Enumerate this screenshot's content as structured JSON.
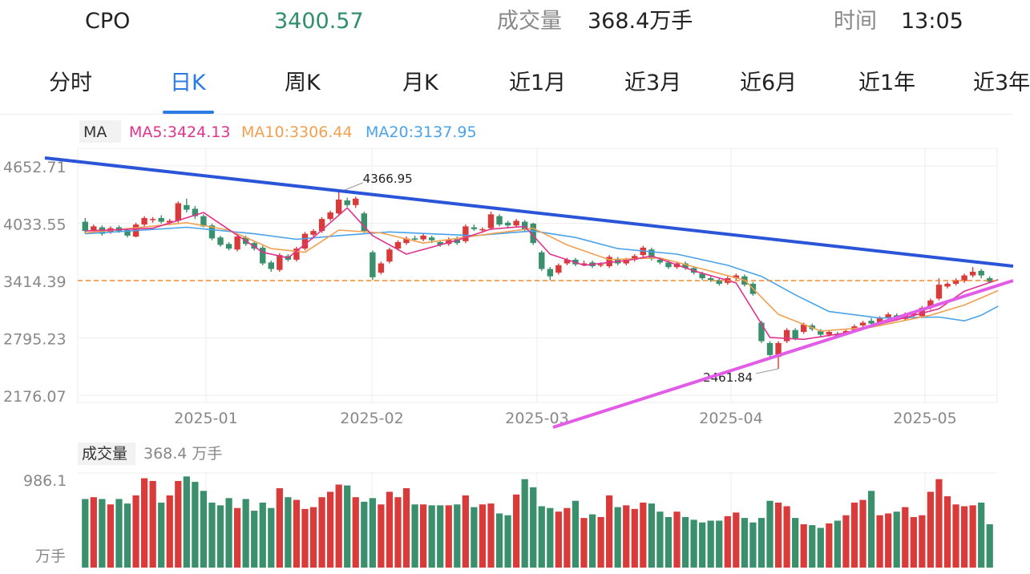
{
  "header": {
    "symbol": "CPO",
    "price": "3400.57",
    "volume_label": "成交量",
    "volume_value": "368.4万手",
    "time_label": "时间",
    "time_value": "13:05"
  },
  "tabs": [
    "分时",
    "日K",
    "周K",
    "月K",
    "近1月",
    "近3月",
    "近6月",
    "近1年",
    "近3年"
  ],
  "active_tab": "日K",
  "legend": {
    "ma_tag": "MA",
    "ma5": "MA5:3424.13",
    "ma10": "MA10:3306.44",
    "ma20": "MA20:3137.95"
  },
  "volume_panel": {
    "label": "成交量",
    "value": "368.4 万手",
    "max_tick": "986.1",
    "unit": "万手"
  },
  "colors": {
    "up": "#d93a3a",
    "down": "#3a8f6d",
    "ma5": "#e0338e",
    "ma10": "#f0a050",
    "ma20": "#4aa3e8",
    "resistance_line": "#2a55d8",
    "support_line": "#e25ce8",
    "price_line": "#f08a2a",
    "price_color": "#2f8f6a",
    "tab_active": "#2a7be4"
  },
  "chart_data": {
    "type": "candlestick",
    "y_ticks": [
      "4652.71",
      "4033.55",
      "3414.39",
      "2795.23",
      "2176.07"
    ],
    "x_ticks": [
      "2025-01",
      "2025-02",
      "2025-03",
      "2025-04",
      "2025-05"
    ],
    "ylim": [
      2176.07,
      4652.71
    ],
    "max_label": "4366.95",
    "min_label": "2461.84",
    "current_price": 3414.39,
    "grid": true,
    "candles": [
      [
        4050,
        3950,
        4090,
        3920
      ],
      [
        3950,
        4000,
        4020,
        3930
      ],
      [
        3990,
        3920,
        4010,
        3900
      ],
      [
        3940,
        3980,
        4000,
        3920
      ],
      [
        3990,
        3950,
        4010,
        3930
      ],
      [
        3960,
        3900,
        3980,
        3880
      ],
      [
        3890,
        4020,
        4040,
        3880
      ],
      [
        4020,
        4090,
        4110,
        4000
      ],
      [
        4070,
        4080,
        4100,
        4040
      ],
      [
        4090,
        4050,
        4120,
        4030
      ],
      [
        4040,
        4060,
        4080,
        4020
      ],
      [
        4060,
        4250,
        4270,
        4040
      ],
      [
        4230,
        4180,
        4300,
        4150
      ],
      [
        4190,
        4110,
        4220,
        4080
      ],
      [
        4110,
        4000,
        4130,
        3990
      ],
      [
        4010,
        3870,
        4030,
        3850
      ],
      [
        3880,
        3800,
        3900,
        3780
      ],
      [
        3810,
        3760,
        3830,
        3740
      ],
      [
        3750,
        3890,
        3910,
        3730
      ],
      [
        3880,
        3810,
        3900,
        3790
      ],
      [
        3820,
        3760,
        3840,
        3740
      ],
      [
        3770,
        3600,
        3790,
        3580
      ],
      [
        3610,
        3540,
        3630,
        3510
      ],
      [
        3530,
        3690,
        3710,
        3510
      ],
      [
        3680,
        3640,
        3700,
        3620
      ],
      [
        3640,
        3760,
        3780,
        3620
      ],
      [
        3760,
        3920,
        3940,
        3740
      ],
      [
        3910,
        3950,
        3970,
        3890
      ],
      [
        3950,
        4080,
        4100,
        3930
      ],
      [
        4080,
        4150,
        4170,
        4060
      ],
      [
        4140,
        4290,
        4366.95,
        4120
      ],
      [
        4280,
        4230,
        4310,
        4210
      ],
      [
        4230,
        4300,
        4320,
        4200
      ],
      [
        4140,
        3950,
        4160,
        3930
      ],
      [
        3720,
        3450,
        3740,
        3420
      ],
      [
        3500,
        3600,
        3620,
        3480
      ],
      [
        3620,
        3750,
        3770,
        3600
      ],
      [
        3760,
        3830,
        3850,
        3740
      ],
      [
        3820,
        3870,
        3890,
        3800
      ],
      [
        3870,
        3860,
        3900,
        3840
      ],
      [
        3860,
        3900,
        3920,
        3840
      ],
      [
        3880,
        3850,
        3900,
        3820
      ],
      [
        3830,
        3800,
        3850,
        3780
      ],
      [
        3810,
        3860,
        3880,
        3790
      ],
      [
        3860,
        3820,
        3890,
        3800
      ],
      [
        3840,
        4000,
        4020,
        3820
      ],
      [
        3990,
        3970,
        4020,
        3950
      ],
      [
        3960,
        3970,
        3990,
        3930
      ],
      [
        3980,
        4130,
        4160,
        3960
      ],
      [
        4110,
        4020,
        4130,
        4000
      ],
      [
        4040,
        4010,
        4060,
        3990
      ],
      [
        4010,
        4060,
        4080,
        3990
      ],
      [
        4050,
        3960,
        4070,
        3940
      ],
      [
        4030,
        3820,
        4040,
        3800
      ],
      [
        3720,
        3540,
        3740,
        3520
      ],
      [
        3540,
        3460,
        3560,
        3420
      ],
      [
        3500,
        3580,
        3600,
        3480
      ],
      [
        3600,
        3640,
        3660,
        3580
      ],
      [
        3640,
        3590,
        3660,
        3570
      ],
      [
        3600,
        3600,
        3630,
        3570
      ],
      [
        3610,
        3570,
        3630,
        3550
      ],
      [
        3580,
        3590,
        3610,
        3560
      ],
      [
        3570,
        3670,
        3690,
        3550
      ],
      [
        3650,
        3600,
        3670,
        3580
      ],
      [
        3600,
        3640,
        3660,
        3580
      ],
      [
        3640,
        3680,
        3700,
        3620
      ],
      [
        3690,
        3770,
        3790,
        3670
      ],
      [
        3750,
        3650,
        3770,
        3630
      ],
      [
        3640,
        3610,
        3660,
        3590
      ],
      [
        3610,
        3560,
        3630,
        3540
      ],
      [
        3560,
        3600,
        3620,
        3540
      ],
      [
        3600,
        3550,
        3620,
        3530
      ],
      [
        3550,
        3500,
        3570,
        3480
      ],
      [
        3490,
        3440,
        3510,
        3420
      ],
      [
        3440,
        3420,
        3460,
        3400
      ],
      [
        3420,
        3380,
        3440,
        3360
      ],
      [
        3390,
        3440,
        3460,
        3370
      ],
      [
        3440,
        3470,
        3490,
        3420
      ],
      [
        3460,
        3370,
        3480,
        3350
      ],
      [
        3380,
        3270,
        3400,
        3250
      ],
      [
        2960,
        2760,
        2980,
        2740
      ],
      [
        2740,
        2610,
        2760,
        2590
      ],
      [
        2590,
        2740,
        2760,
        2461.84
      ],
      [
        2760,
        2880,
        2900,
        2740
      ],
      [
        2880,
        2790,
        2900,
        2770
      ],
      [
        2860,
        2940,
        2960,
        2840
      ],
      [
        2930,
        2890,
        2950,
        2870
      ],
      [
        2870,
        2830,
        2890,
        2810
      ],
      [
        2830,
        2860,
        2880,
        2810
      ],
      [
        2840,
        2810,
        2860,
        2790
      ],
      [
        2850,
        2870,
        2890,
        2830
      ],
      [
        2880,
        2920,
        2940,
        2860
      ],
      [
        2930,
        2960,
        2980,
        2910
      ],
      [
        2980,
        2950,
        3010,
        2930
      ],
      [
        2950,
        3010,
        3030,
        2930
      ],
      [
        3010,
        3050,
        3070,
        2990
      ],
      [
        3040,
        3000,
        3060,
        2980
      ],
      [
        3000,
        3050,
        3070,
        2980
      ],
      [
        3040,
        3060,
        3080,
        3020
      ],
      [
        3030,
        3120,
        3140,
        3010
      ],
      [
        3120,
        3200,
        3220,
        3100
      ],
      [
        3220,
        3370,
        3440,
        3200
      ],
      [
        3350,
        3380,
        3400,
        3330
      ],
      [
        3380,
        3420,
        3440,
        3360
      ],
      [
        3410,
        3470,
        3490,
        3390
      ],
      [
        3470,
        3510,
        3560,
        3450
      ],
      [
        3520,
        3470,
        3540,
        3440
      ],
      [
        3440,
        3400,
        3460,
        3390
      ]
    ],
    "volumes": [
      760,
      780,
      760,
      700,
      760,
      710,
      800,
      990,
      960,
      720,
      800,
      960,
      1010,
      950,
      850,
      720,
      690,
      770,
      660,
      760,
      630,
      720,
      660,
      880,
      780,
      750,
      650,
      670,
      780,
      840,
      920,
      910,
      780,
      730,
      770,
      700,
      840,
      780,
      880,
      700,
      700,
      690,
      690,
      690,
      700,
      800,
      670,
      700,
      710,
      600,
      580,
      810,
      980,
      890,
      680,
      660,
      620,
      660,
      740,
      550,
      590,
      560,
      800,
      670,
      690,
      650,
      720,
      710,
      620,
      560,
      620,
      560,
      530,
      500,
      520,
      520,
      570,
      610,
      550,
      500,
      550,
      740,
      720,
      680,
      550,
      480,
      470,
      440,
      490,
      520,
      580,
      720,
      750,
      850,
      580,
      600,
      620,
      670,
      560,
      580,
      840,
      980,
      790,
      700,
      680,
      690,
      720,
      480
    ],
    "ma5": [
      [
        0,
        3950
      ],
      [
        8,
        3980
      ],
      [
        14,
        4150
      ],
      [
        21,
        3720
      ],
      [
        24,
        3660
      ],
      [
        27,
        3880
      ],
      [
        31,
        4200
      ],
      [
        34,
        3900
      ],
      [
        38,
        3700
      ],
      [
        44,
        3850
      ],
      [
        48,
        3970
      ],
      [
        52,
        4000
      ],
      [
        55,
        3700
      ],
      [
        59,
        3580
      ],
      [
        64,
        3630
      ],
      [
        67,
        3680
      ],
      [
        72,
        3520
      ],
      [
        77,
        3390
      ],
      [
        81,
        2800
      ],
      [
        85,
        2780
      ],
      [
        90,
        2850
      ],
      [
        96,
        2990
      ],
      [
        101,
        3110
      ],
      [
        104,
        3300
      ],
      [
        108,
        3424.13
      ]
    ],
    "ma10": [
      [
        0,
        3930
      ],
      [
        12,
        4040
      ],
      [
        17,
        3960
      ],
      [
        22,
        3760
      ],
      [
        26,
        3720
      ],
      [
        30,
        3960
      ],
      [
        35,
        3930
      ],
      [
        40,
        3820
      ],
      [
        48,
        3920
      ],
      [
        53,
        3980
      ],
      [
        57,
        3800
      ],
      [
        62,
        3640
      ],
      [
        68,
        3660
      ],
      [
        73,
        3540
      ],
      [
        78,
        3420
      ],
      [
        82,
        3050
      ],
      [
        87,
        2870
      ],
      [
        93,
        2910
      ],
      [
        100,
        3040
      ],
      [
        104,
        3150
      ],
      [
        108,
        3306.44
      ]
    ],
    "ma20": [
      [
        0,
        3920
      ],
      [
        12,
        3990
      ],
      [
        20,
        3920
      ],
      [
        25,
        3860
      ],
      [
        30,
        3900
      ],
      [
        36,
        3940
      ],
      [
        46,
        3900
      ],
      [
        53,
        3950
      ],
      [
        58,
        3880
      ],
      [
        63,
        3760
      ],
      [
        70,
        3700
      ],
      [
        76,
        3580
      ],
      [
        80,
        3460
      ],
      [
        84,
        3260
      ],
      [
        88,
        3080
      ],
      [
        94,
        3010
      ],
      [
        101,
        3020
      ],
      [
        104,
        2980
      ],
      [
        106,
        3040
      ],
      [
        108,
        3137.95
      ]
    ],
    "resistance": [
      [
        56,
        197
      ],
      [
        1264,
        332
      ]
    ],
    "support": [
      [
        690,
        533
      ],
      [
        1264,
        350
      ]
    ]
  }
}
